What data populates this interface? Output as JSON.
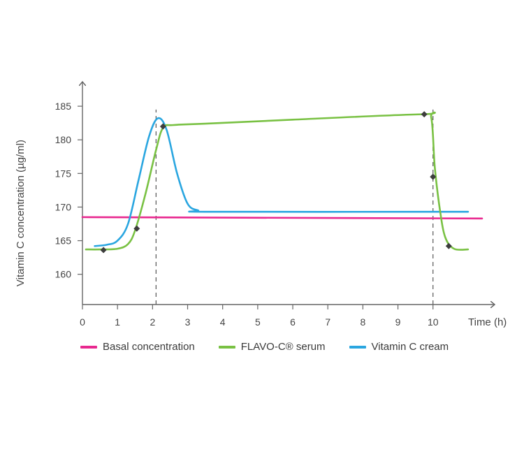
{
  "chart_data": {
    "type": "line",
    "ylabel": "Vitamin C concentration (µg/ml)",
    "xlabel": "Time (h)",
    "x_ticks": [
      0,
      1,
      2,
      3,
      4,
      5,
      6,
      7,
      8,
      9,
      10
    ],
    "y_ticks": [
      160,
      165,
      170,
      175,
      180,
      185
    ],
    "xlim": [
      0,
      11.5
    ],
    "ylim": [
      155.5,
      187.5
    ],
    "grid": false,
    "legend_position": "bottom",
    "series": [
      {
        "name": "Basal concentration",
        "color": "#e8288f",
        "points": [
          [
            0,
            168.5
          ],
          [
            11.4,
            168.3
          ]
        ]
      },
      {
        "name": "FLAVO-C® serum",
        "color": "#79c143",
        "points": [
          [
            0.1,
            163.7
          ],
          [
            0.5,
            163.7
          ],
          [
            1.0,
            163.8
          ],
          [
            1.3,
            164.5
          ],
          [
            1.5,
            166.5
          ],
          [
            1.8,
            172.0
          ],
          [
            2.1,
            178.5
          ],
          [
            2.3,
            181.8
          ],
          [
            2.6,
            182.2
          ],
          [
            3.5,
            182.4
          ],
          [
            6.0,
            183.0
          ],
          [
            9.7,
            183.8
          ],
          [
            9.95,
            183.3
          ],
          [
            10.05,
            176.0
          ],
          [
            10.2,
            169.5
          ],
          [
            10.35,
            165.5
          ],
          [
            10.6,
            163.8
          ],
          [
            11.0,
            163.7
          ]
        ]
      },
      {
        "name": "Vitamin C cream",
        "color": "#2aa6e0",
        "points": [
          [
            0.35,
            164.2
          ],
          [
            0.7,
            164.4
          ],
          [
            1.0,
            165.0
          ],
          [
            1.3,
            167.5
          ],
          [
            1.6,
            174.0
          ],
          [
            1.9,
            180.5
          ],
          [
            2.15,
            183.2
          ],
          [
            2.4,
            181.5
          ],
          [
            2.7,
            175.0
          ],
          [
            3.0,
            170.5
          ],
          [
            3.3,
            169.5
          ],
          [
            3.6,
            169.3
          ],
          [
            10.0,
            169.3
          ],
          [
            11.0,
            169.3
          ]
        ]
      }
    ],
    "markers": [
      {
        "x": 0.6,
        "y": 163.6
      },
      {
        "x": 1.55,
        "y": 166.8
      },
      {
        "x": 2.3,
        "y": 182.0
      },
      {
        "x": 9.75,
        "y": 183.8
      },
      {
        "x": 10.0,
        "y": 174.5
      },
      {
        "x": 10.45,
        "y": 164.2
      }
    ],
    "reference_lines_x": [
      2.1,
      10.0
    ]
  }
}
